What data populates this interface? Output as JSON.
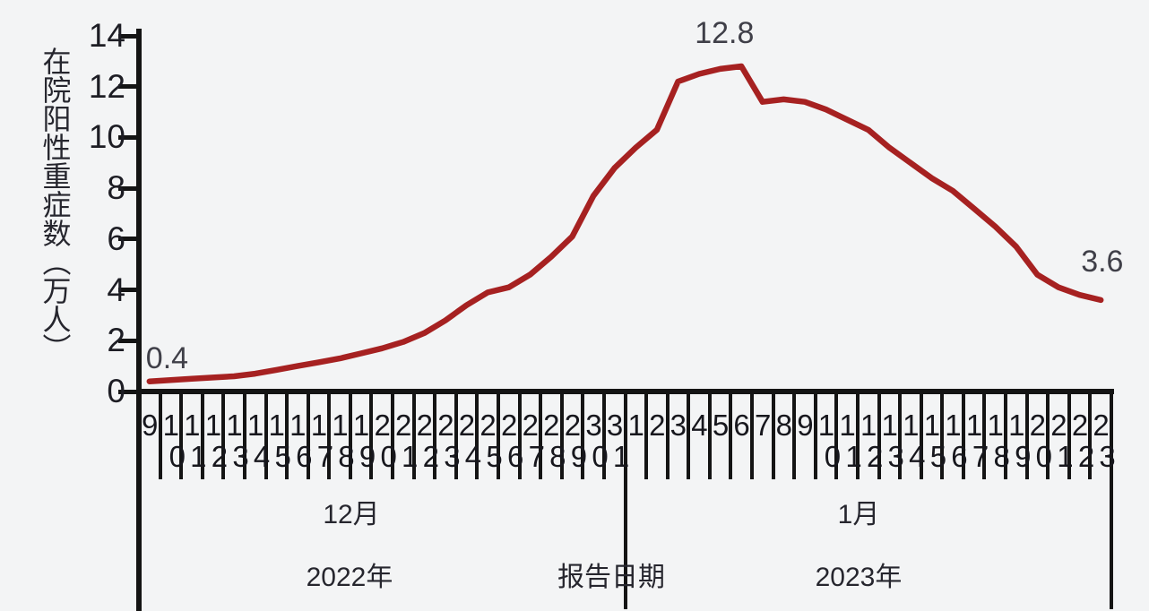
{
  "chart_data": {
    "type": "line",
    "title": "",
    "ylabel": "在院阳性重症数（万人）",
    "x_axis_title": "报告日期",
    "ylim": [
      0,
      14
    ],
    "yticks": [
      0,
      2,
      4,
      6,
      8,
      10,
      12,
      14
    ],
    "grid": false,
    "legend": "none",
    "line_color": "#a62121",
    "axis_color": "#141414",
    "text_color": "#26262e",
    "sections": [
      {
        "month": "12月",
        "year": "2022年",
        "days": [
          9,
          10,
          11,
          12,
          13,
          14,
          15,
          16,
          17,
          18,
          19,
          20,
          21,
          22,
          23,
          24,
          25,
          26,
          27,
          28,
          29,
          30,
          31
        ]
      },
      {
        "month": "1月",
        "year": "2023年",
        "days": [
          1,
          2,
          3,
          4,
          5,
          6,
          7,
          8,
          9,
          10,
          11,
          12,
          13,
          14,
          15,
          16,
          17,
          18,
          19,
          20,
          21,
          22,
          23
        ]
      }
    ],
    "values": [
      0.4,
      0.45,
      0.5,
      0.55,
      0.6,
      0.7,
      0.85,
      1.0,
      1.15,
      1.3,
      1.5,
      1.7,
      1.95,
      2.3,
      2.8,
      3.4,
      3.9,
      4.1,
      4.6,
      5.3,
      6.1,
      7.7,
      8.8,
      9.6,
      10.3,
      12.2,
      12.5,
      12.7,
      12.8,
      11.4,
      11.5,
      11.4,
      11.1,
      10.7,
      10.3,
      9.6,
      9.0,
      8.4,
      7.9,
      7.2,
      6.5,
      5.7,
      4.6,
      4.1,
      3.8,
      3.6
    ],
    "annotations": [
      {
        "text": "0.4",
        "index": 0
      },
      {
        "text": "12.8",
        "index": 28
      },
      {
        "text": "3.6",
        "index": 45
      }
    ]
  }
}
